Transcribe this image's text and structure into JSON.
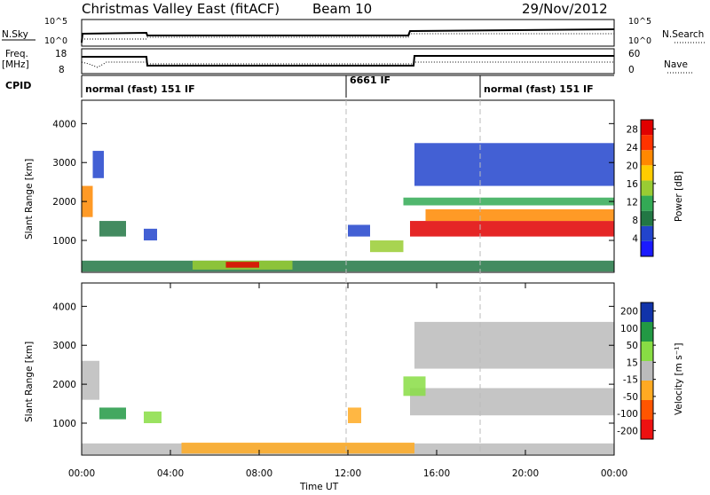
{
  "title": "Christmas Valley East (fitACF)",
  "beam_label": "Beam 10",
  "date": "29/Nov/2012",
  "colors": {
    "power_scale": [
      "#1a1aff",
      "#2244cc",
      "#227744",
      "#33aa55",
      "#99cc33",
      "#ffcc00",
      "#ff8800",
      "#ff3300",
      "#e00000"
    ],
    "velocity_scale": [
      "#ee1111",
      "#ff5500",
      "#ffaa22",
      "#bbbbbb",
      "#88dd44",
      "#229944",
      "#1133aa"
    ],
    "ground_scatter": "#bbbbbb"
  },
  "top_panels": {
    "nsky_label": "N.Sky",
    "nsearch_label": "N.Search",
    "nsky_ticks": [
      "10^5",
      "10^0"
    ],
    "nsearch_ticks": [
      "10^5",
      "10^0"
    ],
    "freq_label": "Freq.",
    "freq_unit": "[MHz]",
    "freq_ticks": [
      "18",
      "8"
    ],
    "nave_label": "Nave",
    "nave_ticks": [
      "60",
      "0"
    ],
    "cpid_label": "CPID",
    "cpid_segments": [
      {
        "label": "normal (fast) 151 IF",
        "start_hr": 0,
        "end_hr": 12
      },
      {
        "label": "6661 IF",
        "start_hr": 12,
        "end_hr": 18
      },
      {
        "label": "normal (fast) 151 IF",
        "start_hr": 18,
        "end_hr": 24
      }
    ]
  },
  "chart_data": [
    {
      "type": "heatmap",
      "name": "power",
      "xlabel": "",
      "ylabel": "Slant Range [km]",
      "y_ticks": [
        "1000",
        "2000",
        "3000",
        "4000"
      ],
      "ylim": [
        180,
        4600
      ],
      "colorbar_label": "Power [dB]",
      "colorbar_ticks": [
        "4",
        "8",
        "12",
        "16",
        "20",
        "24",
        "28"
      ],
      "colorbar_range": [
        0,
        30
      ],
      "xlim_hours": [
        0,
        24
      ],
      "regions": [
        {
          "t0": 0.0,
          "t1": 24.0,
          "r0": 200,
          "r1": 480,
          "level": 2
        },
        {
          "t0": 5.0,
          "t1": 9.5,
          "r0": 250,
          "r1": 480,
          "level": 4
        },
        {
          "t0": 6.5,
          "t1": 8.0,
          "r0": 300,
          "r1": 450,
          "level": 8
        },
        {
          "t0": 0.0,
          "t1": 0.5,
          "r0": 1600,
          "r1": 2400,
          "level": 6
        },
        {
          "t0": 0.5,
          "t1": 1.0,
          "r0": 2600,
          "r1": 3300,
          "level": 1
        },
        {
          "t0": 0.8,
          "t1": 2.0,
          "r0": 1100,
          "r1": 1500,
          "level": 2
        },
        {
          "t0": 2.8,
          "t1": 3.4,
          "r0": 1000,
          "r1": 1300,
          "level": 1
        },
        {
          "t0": 12.0,
          "t1": 13.0,
          "r0": 1100,
          "r1": 1400,
          "level": 1
        },
        {
          "t0": 13.0,
          "t1": 14.5,
          "r0": 700,
          "r1": 1000,
          "level": 4
        },
        {
          "t0": 14.5,
          "t1": 24.0,
          "r0": 1900,
          "r1": 2100,
          "level": 3
        },
        {
          "t0": 14.8,
          "t1": 24.0,
          "r0": 1100,
          "r1": 1500,
          "level": 8
        },
        {
          "t0": 15.5,
          "t1": 24.0,
          "r0": 1500,
          "r1": 1800,
          "level": 6
        },
        {
          "t0": 15.0,
          "t1": 24.0,
          "r0": 2400,
          "r1": 3500,
          "level": 1
        }
      ]
    },
    {
      "type": "heatmap",
      "name": "velocity",
      "xlabel": "Time UT",
      "ylabel": "Slant Range [km]",
      "x_ticks": [
        "00:00",
        "04:00",
        "08:00",
        "12:00",
        "16:00",
        "20:00",
        "00:00"
      ],
      "y_ticks": [
        "1000",
        "2000",
        "3000",
        "4000"
      ],
      "ylim": [
        180,
        4600
      ],
      "colorbar_label": "Velocity [m s⁻¹]",
      "colorbar_ticks": [
        "200",
        "100",
        "50",
        "15",
        "-15",
        "-50",
        "-100",
        "-200"
      ],
      "colorbar_range": [
        -250,
        250
      ],
      "xlim_hours": [
        0,
        24
      ],
      "regions": [
        {
          "t0": 0.0,
          "t1": 24.0,
          "r0": 200,
          "r1": 480,
          "level": 3
        },
        {
          "t0": 4.5,
          "t1": 15.0,
          "r0": 220,
          "r1": 500,
          "level": 2
        },
        {
          "t0": 0.0,
          "t1": 0.8,
          "r0": 1600,
          "r1": 2600,
          "level": 3
        },
        {
          "t0": 0.8,
          "t1": 2.0,
          "r0": 1100,
          "r1": 1400,
          "level": 5
        },
        {
          "t0": 2.8,
          "t1": 3.6,
          "r0": 1000,
          "r1": 1300,
          "level": 4
        },
        {
          "t0": 12.0,
          "t1": 12.6,
          "r0": 1000,
          "r1": 1400,
          "level": 2
        },
        {
          "t0": 14.8,
          "t1": 24.0,
          "r0": 1200,
          "r1": 1900,
          "level": 3
        },
        {
          "t0": 15.0,
          "t1": 24.0,
          "r0": 2400,
          "r1": 3600,
          "level": 3
        },
        {
          "t0": 14.5,
          "t1": 15.5,
          "r0": 1700,
          "r1": 2200,
          "level": 4
        }
      ]
    }
  ]
}
